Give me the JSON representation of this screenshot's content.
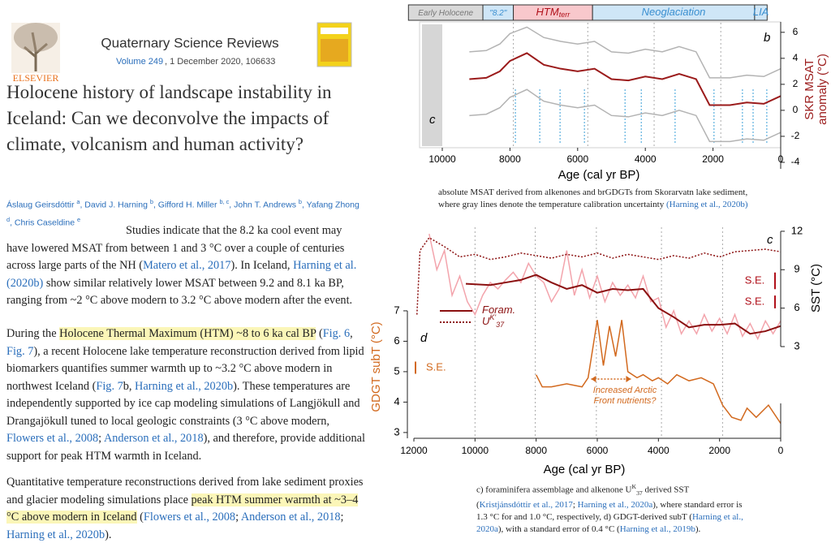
{
  "journal": {
    "name": "Quaternary Science Reviews",
    "volume": "Volume 249",
    "issue_info": ", 1 December 2020, 106633",
    "publisher": "ELSEVIER"
  },
  "article": {
    "title": "Holocene history of landscape instability in Iceland: Can we deconvolve the impacts of climate, volcanism and human activity?",
    "authors": [
      {
        "text": "Áslaug Geirsdóttir "
      },
      {
        "text": "a",
        "style": "sup"
      },
      {
        "text": ", David J. Harning "
      },
      {
        "text": "b",
        "style": "sup"
      },
      {
        "text": ", Gifford H. Miller "
      },
      {
        "text": "b, c",
        "style": "sup"
      },
      {
        "text": ", John T. Andrews "
      },
      {
        "text": "b",
        "style": "sup"
      },
      {
        "text": ", Yafang Zhong "
      },
      {
        "text": "d",
        "style": "sup"
      },
      {
        "text": ", Chris Caseldine "
      },
      {
        "text": "e",
        "style": "sup"
      }
    ],
    "paragraphs": [
      {
        "segments": [
          {
            "text": "Studies indicate that the 8.2 ka cool event may have lowered MSAT from between 1 and 3 °C over a couple of centuries across large parts of the NH ("
          },
          {
            "text": "Matero et al., 2017",
            "style": "link"
          },
          {
            "text": "). In Iceland, "
          },
          {
            "text": "Harning et al. (2020b)",
            "style": "link"
          },
          {
            "text": " show similar relatively lower MSAT between 9.2 and 8.1 ka BP, ranging from ~2 °C above modern to 3.2 °C above modern after the event."
          }
        ]
      },
      {
        "segments": [
          {
            "text": "During the "
          },
          {
            "text": "Holocene Thermal Maximum (HTM) ~8 to 6 ka cal BP",
            "style": "hl"
          },
          {
            "text": " ("
          },
          {
            "text": "Fig. 6",
            "style": "link"
          },
          {
            "text": ", "
          },
          {
            "text": "Fig. 7",
            "style": "link"
          },
          {
            "text": "), a recent Holocene lake temperature reconstruction derived from lipid biomarkers quantifies summer warmth up to ~3.2 °C above modern in northwest Iceland ("
          },
          {
            "text": "Fig. 7",
            "style": "link"
          },
          {
            "text": "b, "
          },
          {
            "text": "Harning et al., 2020b",
            "style": "link"
          },
          {
            "text": "). These temperatures are independently supported by ice cap modeling simulations of Langjökull and Drangajökull tuned to local geologic constraints (3 °C above modern, "
          },
          {
            "text": "Flowers et al., 2008",
            "style": "link"
          },
          {
            "text": "; "
          },
          {
            "text": "Anderson et al., 2018",
            "style": "link"
          },
          {
            "text": "), and therefore, provide additional support for peak HTM warmth in Iceland."
          }
        ]
      },
      {
        "segments": [
          {
            "text": "Quantitative temperature reconstructions derived from lake sediment proxies and glacier modeling simulations place "
          },
          {
            "text": "peak HTM summer warmth at ~3–4 °C above modern in Iceland",
            "style": "hl"
          },
          {
            "text": " ("
          },
          {
            "text": "Flowers et al., 2008",
            "style": "link"
          },
          {
            "text": "; "
          },
          {
            "text": "Anderson et al., 2018",
            "style": "link"
          },
          {
            "text": "; "
          },
          {
            "text": "Harning et al., 2020b",
            "style": "link"
          },
          {
            "text": ")."
          }
        ]
      }
    ]
  },
  "figure_b": {
    "type": "line",
    "panel_label": "b",
    "shade_label": "c",
    "x_label": "Age (cal yr BP)",
    "y_label": "SKR MSAT",
    "y_label_2": "anomaly (°C)",
    "xlim": [
      10000,
      0
    ],
    "xticks": [
      10000,
      8000,
      6000,
      4000,
      2000,
      0
    ],
    "ylim": [
      -4.5,
      6.8
    ],
    "yticks": [
      6,
      4,
      2,
      0,
      -2,
      -4
    ],
    "periods": [
      {
        "label": "Early Holocene",
        "start": 11000,
        "end": 8800,
        "color": "#d9d9d9",
        "text_color": "#777777"
      },
      {
        "label": "\"8.2\"",
        "start": 8800,
        "end": 7900,
        "color": "#cfe6f7",
        "text_color": "#3a8fd0"
      },
      {
        "label": "HTM",
        "sub": "terr",
        "start": 7900,
        "end": 5560,
        "color": "#f8c8cc",
        "text_color": "#b0101a"
      },
      {
        "label": "Neoglaciation",
        "start": 5560,
        "end": 770,
        "color": "#cfe6f7",
        "text_color": "#3a8fd0"
      },
      {
        "label": "LIA",
        "start": 770,
        "end": 400,
        "color": "#cfe6f7",
        "text_color": "#3a8fd0"
      }
    ],
    "shaded_range": [
      10600,
      10000
    ],
    "reference_lines": [
      7900,
      5700,
      3740,
      1770
    ],
    "date_markers": [
      7840,
      7120,
      6520,
      5800,
      4600,
      4120,
      3120,
      1970,
      1130,
      815,
      410
    ],
    "x": [
      9200,
      8700,
      8300,
      8000,
      7500,
      7000,
      6500,
      6000,
      5500,
      5000,
      4500,
      4000,
      3500,
      3000,
      2500,
      2100,
      1500,
      1000,
      500,
      0
    ],
    "series": [
      {
        "color": "#b3b3b3",
        "values": [
          4.5,
          4.6,
          5.1,
          5.9,
          6.4,
          5.6,
          5.3,
          5.1,
          5.3,
          4.5,
          4.4,
          4.7,
          4.5,
          4.9,
          4.5,
          2.5,
          2.5,
          2.7,
          2.6,
          3.2
        ]
      },
      {
        "color": "#9b1b1b",
        "values": [
          2.4,
          2.5,
          3.0,
          3.8,
          4.4,
          3.5,
          3.2,
          3.0,
          3.2,
          2.4,
          2.3,
          2.6,
          2.4,
          2.8,
          2.4,
          0.4,
          0.4,
          0.6,
          0.5,
          1.1
        ]
      },
      {
        "color": "#b3b3b3",
        "values": [
          -0.4,
          -0.3,
          0.2,
          1.0,
          1.6,
          0.7,
          0.4,
          0.2,
          0.4,
          -0.4,
          -0.5,
          -0.2,
          -0.4,
          0.0,
          -0.4,
          -2.4,
          -2.4,
          -2.2,
          -2.3,
          -1.7
        ]
      }
    ],
    "caption": [
      {
        "text": "absolute MSAT derived from alkenones and brGDGTs from Skorarvatn lake sediment, where gray lines denote the temperature calibration uncertainty "
      },
      {
        "text": "(Harning et al., 2020b)",
        "style": "link"
      }
    ]
  },
  "figure_cd": {
    "type": "line",
    "panel_c": "c",
    "panel_d": "d",
    "x_label": "Age (cal yr BP)",
    "y_label": "GDGT subT (°C)",
    "y2_label": "SST (°C)",
    "xlim": [
      12000,
      0
    ],
    "xticks": [
      12000,
      10000,
      8000,
      6000,
      4000,
      2000,
      0
    ],
    "ylim": [
      2.81,
      9.88
    ],
    "yticks": [
      7,
      6,
      5,
      4,
      3
    ],
    "y2lim": [
      -4.16,
      12.63
    ],
    "y2ticks": [
      12,
      9,
      6,
      3
    ],
    "reference_lines": [
      10000,
      8030,
      6030,
      3900,
      1900
    ],
    "series": [
      {
        "name": "Foram.",
        "color": "#f3a4ac",
        "axis": "y2",
        "legend": false,
        "x": [
          11500,
          11250,
          11000,
          10750,
          10500,
          10250,
          10000,
          9750,
          9500,
          9250,
          9000,
          8750,
          8500,
          8250,
          8000,
          7750,
          7500,
          7250,
          7000,
          6750,
          6500,
          6250,
          6000,
          5750,
          5500,
          5250,
          5000,
          4750,
          4500,
          4250,
          4000,
          3750,
          3500,
          3250,
          3000,
          2750,
          2500,
          2250,
          2000,
          1750,
          1500,
          1250,
          1000,
          750,
          500,
          250,
          0
        ],
        "values": [
          11.8,
          9.0,
          10.5,
          7.0,
          8.5,
          6.5,
          5.5,
          7.0,
          8.0,
          7.5,
          8.2,
          8.8,
          8.0,
          9.5,
          8.5,
          8.0,
          6.5,
          7.5,
          10.5,
          7.0,
          9.0,
          6.8,
          8.5,
          6.5,
          8.0,
          7.0,
          7.8,
          6.8,
          8.5,
          6.5,
          6.8,
          4.5,
          5.8,
          4.0,
          5.0,
          4.0,
          5.5,
          4.2,
          5.2,
          4.0,
          5.5,
          3.8,
          4.8,
          3.6,
          5.0,
          4.0,
          5.0
        ]
      },
      {
        "name": "Foram.",
        "color": "#8b1010",
        "axis": "y2",
        "x": [
          10300,
          9500,
          9000,
          8500,
          8000,
          7500,
          7000,
          6500,
          6000,
          5500,
          5000,
          4500,
          4000,
          3500,
          3000,
          2500,
          2000,
          1500,
          1000,
          500,
          0
        ],
        "values": [
          7.9,
          7.8,
          8.0,
          8.2,
          8.6,
          8.0,
          7.5,
          7.8,
          7.2,
          7.5,
          7.4,
          7.5,
          6.0,
          5.3,
          4.5,
          4.7,
          4.7,
          4.8,
          4.0,
          4.2,
          4.6
        ]
      },
      {
        "name": "U",
        "sup": "K'",
        "sub": "37",
        "color": "#8b1010",
        "dashed": true,
        "axis": "y2",
        "x": [
          11900,
          11800,
          11500,
          11000,
          10500,
          10000,
          9500,
          9000,
          8500,
          8000,
          7500,
          7000,
          6500,
          6000,
          5500,
          5000,
          4500,
          4000,
          3500,
          3000,
          2500,
          2000,
          1500,
          1000,
          500,
          0
        ],
        "values": [
          5.5,
          10.5,
          11.5,
          10.8,
          10.0,
          10.2,
          9.8,
          10.0,
          10.3,
          10.1,
          9.9,
          10.2,
          10.0,
          10.3,
          9.9,
          10.2,
          10.0,
          9.8,
          10.1,
          9.9,
          10.3,
          10.0,
          10.4,
          10.5,
          10.6,
          10.4
        ]
      },
      {
        "color": "#d2691e",
        "axis": "y",
        "x": [
          8000,
          7800,
          7500,
          7000,
          6500,
          6300,
          6000,
          5800,
          5600,
          5400,
          5200,
          5000,
          4700,
          4500,
          4200,
          4000,
          3700,
          3400,
          3000,
          2600,
          2200,
          1900,
          1600,
          1300,
          1100,
          800,
          400,
          0
        ],
        "values": [
          4.9,
          4.5,
          4.5,
          4.6,
          4.5,
          4.8,
          6.7,
          5.2,
          6.5,
          5.5,
          6.7,
          5.0,
          4.8,
          4.9,
          4.7,
          4.8,
          4.6,
          4.9,
          4.7,
          4.8,
          4.6,
          3.9,
          3.5,
          3.4,
          3.8,
          3.5,
          3.9,
          3.3
        ]
      }
    ],
    "errors": [
      {
        "label": "S.E.",
        "value": 1.3,
        "axis": "y2",
        "color": "#b0101a"
      },
      {
        "label": "S.E.",
        "value": 1.0,
        "axis": "y2",
        "color": "#b0101a"
      },
      {
        "label": "S.E.",
        "value": 0.4,
        "axis": "y",
        "color": "#d2691e"
      }
    ],
    "annotation": "Increased Arctic",
    "annotation_2": "Front nutrients?",
    "annotation_range": [
      6200,
      4900
    ],
    "caption": [
      {
        "text": "c) foraminifera assemblage and alkenone U"
      },
      {
        "text": "K",
        "style": "sup"
      },
      {
        "text": "37",
        "style": "sub"
      },
      {
        "text": " derived SST ("
      },
      {
        "text": "Kristjánsdóttir et al., 2017",
        "style": "link"
      },
      {
        "text": "; "
      },
      {
        "text": "Harning et al., 2020a",
        "style": "link"
      },
      {
        "text": "), where standard error is 1.3 °C for and 1.0 °C, respectively, d) GDGT-derived subT ("
      },
      {
        "text": "Harning et al., 2020a",
        "style": "link"
      },
      {
        "text": "), with a standard error of 0.4 °C ("
      },
      {
        "text": "Harning et al., 2019b",
        "style": "link"
      },
      {
        "text": ")."
      }
    ]
  }
}
